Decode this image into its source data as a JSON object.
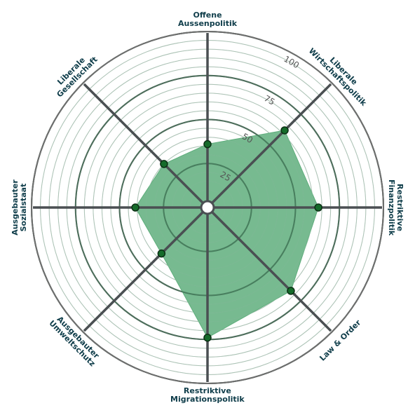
{
  "chart_data": {
    "type": "radar",
    "axes": [
      "Offene\nAussenpolitik",
      "Liberale\nWirtschaftspolitik",
      "Restriktive\nFinanzpolitik",
      "Law & Order",
      "Restriktive\nMigrationspolitik",
      "Ausgebauter\nUmweltschutz",
      "Ausgebauter\nSozialstaat",
      "Liberale\nGesellschaft"
    ],
    "values": [
      36,
      62,
      63,
      67,
      74,
      37,
      41,
      35
    ],
    "rlim": [
      0,
      100
    ],
    "ticks": [
      25,
      50,
      75,
      100
    ],
    "grid": true,
    "fill_color": "#5fae7c",
    "point_color": "#156b2a",
    "axis_color": "#4a4f52"
  }
}
